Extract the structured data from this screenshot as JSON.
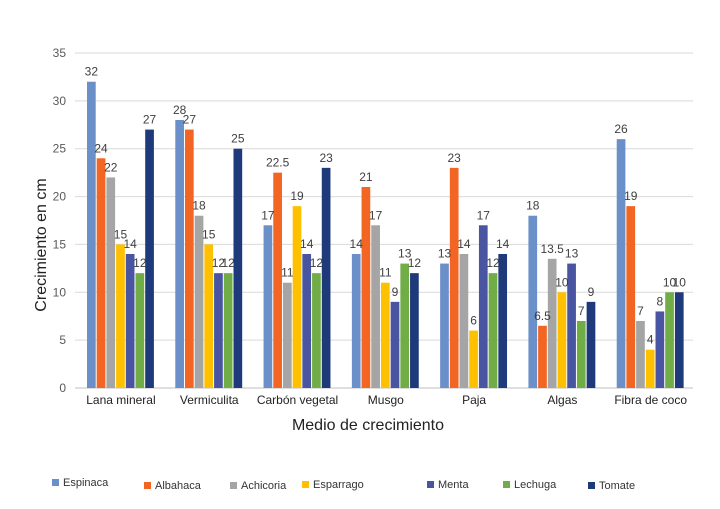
{
  "chart_data": {
    "type": "bar",
    "xlabel": "Medio de crecimiento",
    "ylabel": "Crecimiento en cm",
    "ylim": [
      0,
      35
    ],
    "yticks": [
      0,
      5,
      10,
      15,
      20,
      25,
      30,
      35
    ],
    "grid": true,
    "legend_position": "bottom",
    "categories": [
      "Lana mineral",
      "Vermiculita",
      "Carbón vegetal",
      "Musgo",
      "Paja",
      "Algas",
      "Fibra de coco"
    ],
    "series": [
      {
        "name": "Espinaca",
        "color": "#6b8fc9",
        "values": [
          32,
          28,
          17,
          14,
          13,
          18,
          26
        ]
      },
      {
        "name": "Albahaca",
        "color": "#f26522",
        "values": [
          24,
          27,
          22.5,
          21,
          23,
          6.5,
          19
        ]
      },
      {
        "name": "Achicoria",
        "color": "#a5a5a5",
        "values": [
          22,
          18,
          11,
          17,
          14,
          13.5,
          7
        ]
      },
      {
        "name": "Esparrago",
        "color": "#ffc000",
        "values": [
          15,
          15,
          19,
          11,
          6,
          10,
          4
        ]
      },
      {
        "name": "Menta",
        "color": "#4a55a2",
        "values": [
          14,
          12,
          14,
          9,
          17,
          13,
          8
        ]
      },
      {
        "name": "Lechuga",
        "color": "#70ad47",
        "values": [
          12,
          12,
          12,
          13,
          12,
          7,
          10
        ]
      },
      {
        "name": "Tomate",
        "color": "#1f3a7a",
        "values": [
          27,
          25,
          23,
          12,
          14,
          9,
          10
        ]
      }
    ]
  }
}
